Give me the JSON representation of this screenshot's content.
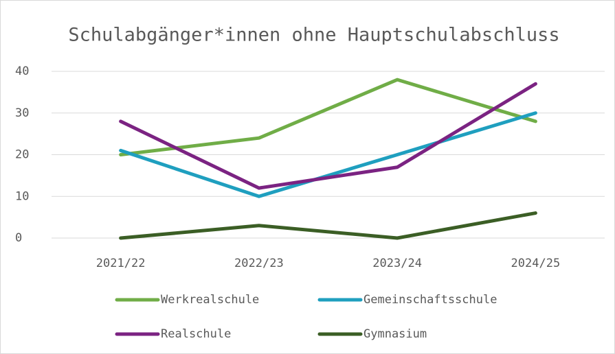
{
  "chart_data": {
    "type": "line",
    "title": "Schulabgänger*innen ohne Hauptschulabschluss",
    "categories": [
      "2021/22",
      "2022/23",
      "2023/24",
      "2024/25"
    ],
    "series": [
      {
        "name": "Werkrealschule",
        "color": "#70ad47",
        "values": [
          20,
          24,
          38,
          28
        ]
      },
      {
        "name": "Gemeinschaftsschule",
        "color": "#1f9fbf",
        "values": [
          21,
          10,
          20,
          30
        ]
      },
      {
        "name": "Realschule",
        "color": "#7b2382",
        "values": [
          28,
          12,
          17,
          37
        ]
      },
      {
        "name": "Gymnasium",
        "color": "#3b5e25",
        "values": [
          0,
          3,
          0,
          6
        ]
      }
    ],
    "ylim": [
      0,
      40
    ],
    "yticks": [
      0,
      10,
      20,
      30,
      40
    ],
    "grid": true,
    "legend": "bottom"
  }
}
